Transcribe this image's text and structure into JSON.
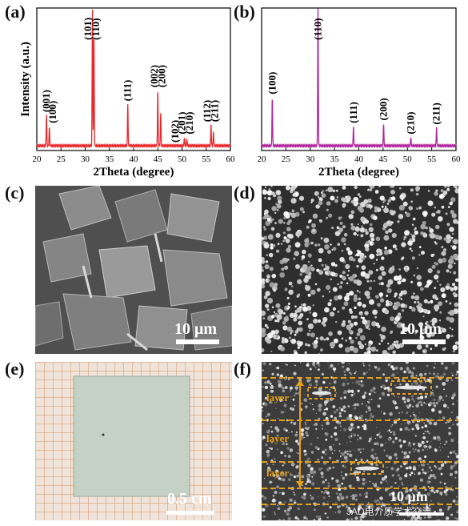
{
  "panels": {
    "a": "(a)",
    "b": "(b)",
    "c": "(c)",
    "d": "(d)",
    "e": "(e)",
    "f": "(f)"
  },
  "chart_data": [
    {
      "type": "line",
      "panel": "(a)",
      "xlabel": "2Theta (degree)",
      "ylabel": "Intensity (a.u.)",
      "xlim": [
        20,
        60
      ],
      "xticks": [
        20,
        25,
        30,
        35,
        40,
        45,
        50,
        55,
        60
      ],
      "color": "#e8282b",
      "peaks": [
        {
          "x": 22.0,
          "h": 0.22
        },
        {
          "x": 22.6,
          "h": 0.14
        },
        {
          "x": 31.5,
          "h": 1.0
        },
        {
          "x": 31.8,
          "h": 0.82
        },
        {
          "x": 38.8,
          "h": 0.3
        },
        {
          "x": 45.0,
          "h": 0.4
        },
        {
          "x": 45.6,
          "h": 0.24
        },
        {
          "x": 50.5,
          "h": 0.06
        },
        {
          "x": 51.0,
          "h": 0.05
        },
        {
          "x": 56.0,
          "h": 0.15
        },
        {
          "x": 56.5,
          "h": 0.1
        }
      ],
      "annotations": [
        {
          "text": "(001)",
          "x": 22.0
        },
        {
          "text": "(100)",
          "x": 23.3
        },
        {
          "text": "(101)",
          "x": 30.6
        },
        {
          "text": "(110)",
          "x": 32.2
        },
        {
          "text": "(111)",
          "x": 38.8
        },
        {
          "text": "(002)",
          "x": 44.3
        },
        {
          "text": "(200)",
          "x": 45.9
        },
        {
          "text": "(102)",
          "x": 48.6
        },
        {
          "text": "(201)",
          "x": 50.0
        },
        {
          "text": "(210)",
          "x": 51.6
        },
        {
          "text": "(112)",
          "x": 55.2
        },
        {
          "text": "(211)",
          "x": 56.8
        }
      ]
    },
    {
      "type": "line",
      "panel": "(b)",
      "xlabel": "2Theta (degree)",
      "ylabel": "",
      "xlim": [
        20,
        60
      ],
      "xticks": [
        20,
        25,
        30,
        35,
        40,
        45,
        50,
        55,
        60
      ],
      "color": "#b0259e",
      "peaks": [
        {
          "x": 22.2,
          "h": 0.35
        },
        {
          "x": 31.6,
          "h": 1.0
        },
        {
          "x": 38.9,
          "h": 0.14
        },
        {
          "x": 45.1,
          "h": 0.16
        },
        {
          "x": 50.7,
          "h": 0.06
        },
        {
          "x": 56.0,
          "h": 0.13
        }
      ],
      "annotations": [
        {
          "text": "(100)",
          "x": 22.2
        },
        {
          "text": "(110)",
          "x": 31.6
        },
        {
          "text": "(111)",
          "x": 38.9
        },
        {
          "text": "(200)",
          "x": 45.1
        },
        {
          "text": "(210)",
          "x": 50.7
        },
        {
          "text": "(211)",
          "x": 56.0
        }
      ]
    }
  ],
  "scale_bars": {
    "c": "10 μm",
    "d": "10 μm",
    "e": "0.5 cm",
    "f": "10 μm"
  },
  "layer_labels": [
    "layer",
    "layer",
    "layer"
  ],
  "watermark": "JAD电介质学术交流",
  "colors": {
    "xrd_a": "#e8282b",
    "xrd_b": "#b0259e",
    "dash_orange": "#e5a016"
  }
}
